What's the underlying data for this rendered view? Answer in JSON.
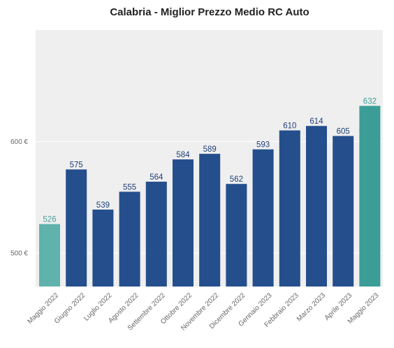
{
  "chart_data": {
    "type": "bar",
    "title": "Calabria - Miglior Prezzo Medio RC Auto",
    "xlabel": "",
    "ylabel": "",
    "ylim": [
      470,
      700
    ],
    "yticks": [
      500,
      600
    ],
    "ytick_labels": [
      "500 €",
      "600 €"
    ],
    "categories": [
      "Maggio 2022",
      "Giugno 2022",
      "Luglio 2022",
      "Agosto 2022",
      "Settembre 2022",
      "Ottobre 2022",
      "Novembre 2022",
      "Dicembre 2022",
      "Gennaio 2023",
      "Febbraio 2023",
      "Marzo 2023",
      "Aprile 2023",
      "Maggio 2023"
    ],
    "values": [
      526,
      575,
      539,
      555,
      564,
      584,
      589,
      562,
      593,
      610,
      614,
      605,
      632
    ],
    "value_labels": [
      "526",
      "575",
      "539",
      "555",
      "564",
      "584",
      "589",
      "562",
      "593",
      "610",
      "614",
      "605",
      "632"
    ],
    "bar_colors": [
      "#5fb3ac",
      "#244f8c",
      "#244f8c",
      "#244f8c",
      "#244f8c",
      "#244f8c",
      "#244f8c",
      "#244f8c",
      "#244f8c",
      "#244f8c",
      "#244f8c",
      "#244f8c",
      "#3a9e97"
    ],
    "label_colors": [
      "#4a9e98",
      "#1e3f78",
      "#1e3f78",
      "#1e3f78",
      "#1e3f78",
      "#1e3f78",
      "#1e3f78",
      "#1e3f78",
      "#1e3f78",
      "#1e3f78",
      "#1e3f78",
      "#1e3f78",
      "#3a9e97"
    ],
    "plot_background": "#efefef",
    "grid": true,
    "legend": "none"
  }
}
